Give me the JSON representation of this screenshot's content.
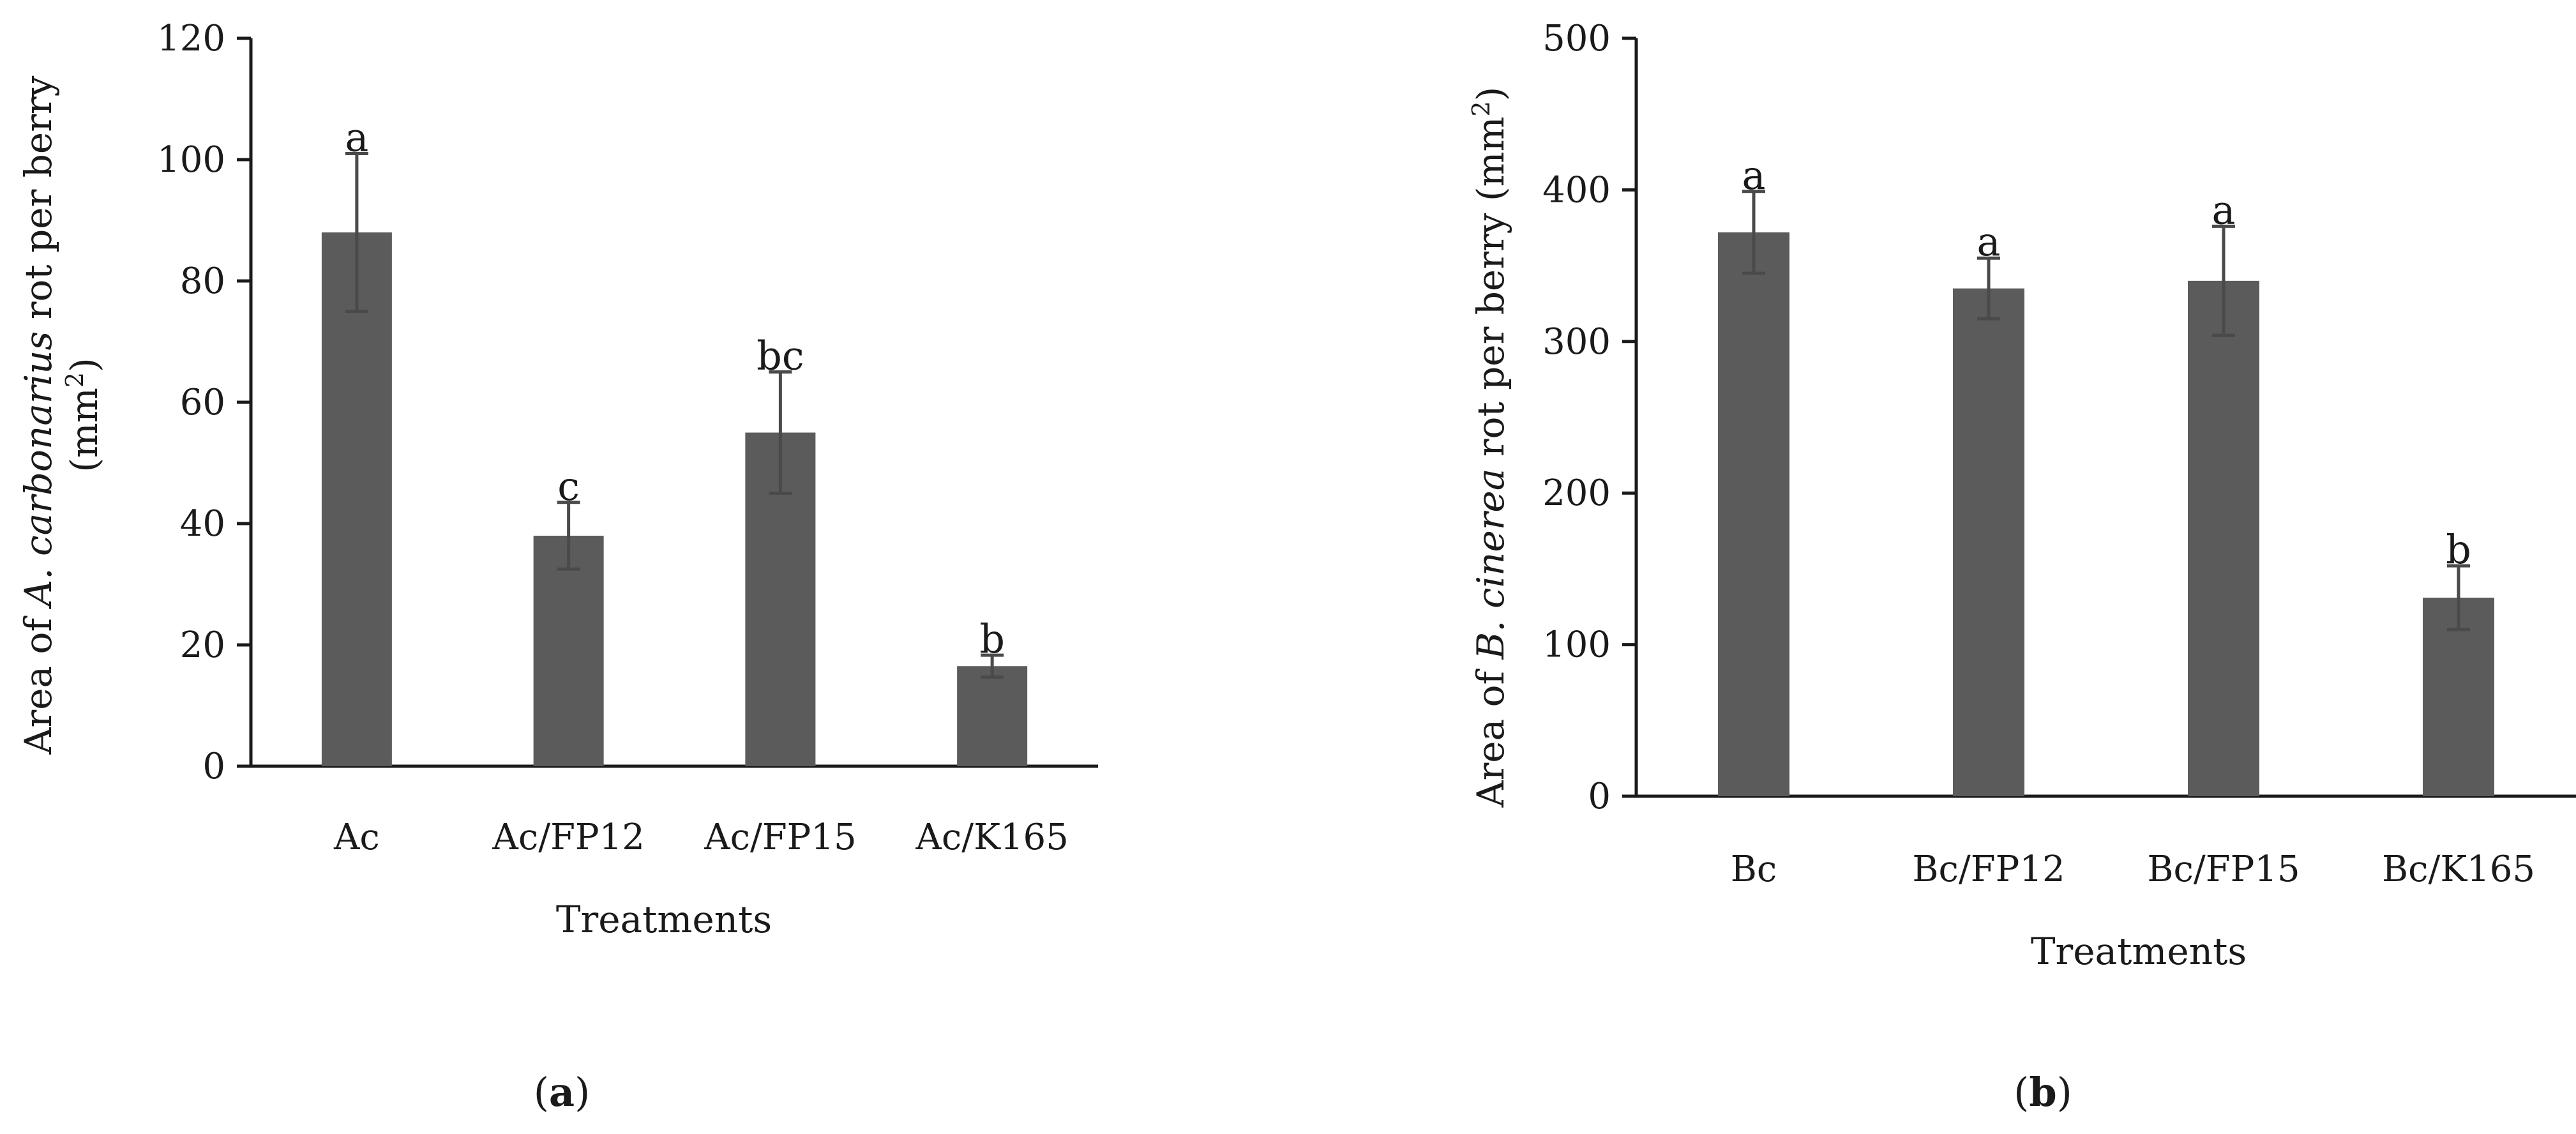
{
  "chart_data": [
    {
      "type": "bar",
      "panel": "a",
      "categories": [
        "Ac",
        "Ac/FP12",
        "Ac/FP15",
        "Ac/K165"
      ],
      "values": [
        88,
        38,
        55,
        16.5
      ],
      "errors": [
        13,
        5.5,
        10,
        1.8
      ],
      "significance": [
        "a",
        "c",
        "bc",
        "b"
      ],
      "xlabel": "Treatments",
      "ylabel_parts": [
        "Area of ",
        "A. carbonarius",
        " rot per berry",
        "(mm",
        "2",
        ")"
      ],
      "ylim": [
        0,
        120
      ],
      "yticks": [
        0,
        20,
        40,
        60,
        80,
        100,
        120
      ]
    },
    {
      "type": "bar",
      "panel": "b",
      "categories": [
        "Bc",
        "Bc/FP12",
        "Bc/FP15",
        "Bc/K165"
      ],
      "values": [
        372,
        335,
        340,
        131
      ],
      "errors": [
        27,
        20,
        36,
        21
      ],
      "significance": [
        "a",
        "a",
        "a",
        "b"
      ],
      "xlabel": "Treatments",
      "ylabel_parts": [
        "Area of ",
        "B. cinerea",
        " rot per berry (mm",
        "2",
        ")"
      ],
      "ylim": [
        0,
        500
      ],
      "yticks": [
        0,
        100,
        200,
        300,
        400,
        500
      ]
    }
  ],
  "panel_labels": [
    "a",
    "b"
  ]
}
